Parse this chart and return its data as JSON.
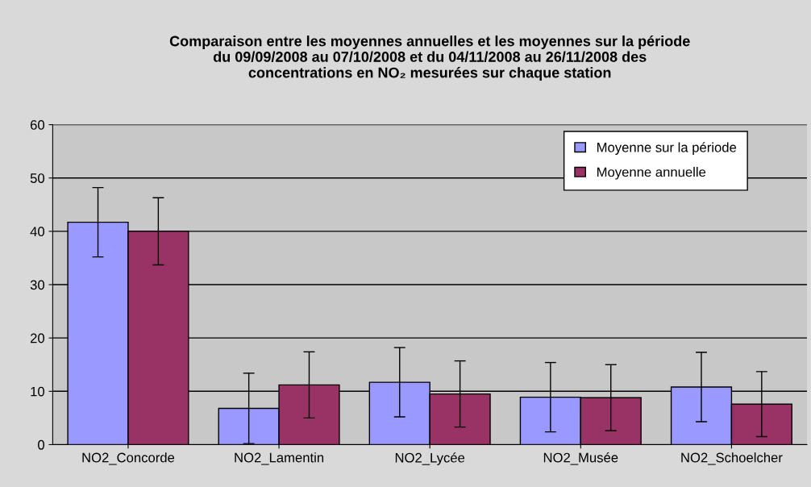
{
  "chart_data": {
    "type": "bar",
    "title": "Comparaison entre les moyennes annuelles et les moyennes sur la période\ndu 09/09/2008 au 07/10/2008 et du 04/11/2008 au 26/11/2008 des\nconcentrations en NO₂ mesurées sur chaque station",
    "categories": [
      "NO2_Concorde",
      "NO2_Lamentin",
      "NO2_Lycée",
      "NO2_Musée",
      "NO2_Schoelcher"
    ],
    "series": [
      {
        "name": "Moyenne sur la période",
        "color": "#9999ff",
        "values": [
          41.7,
          6.8,
          11.7,
          8.9,
          10.8
        ],
        "errors": [
          6.5,
          6.6,
          6.5,
          6.5,
          6.5
        ]
      },
      {
        "name": "Moyenne annuelle",
        "color": "#993366",
        "values": [
          40.0,
          11.2,
          9.5,
          8.8,
          7.6
        ],
        "errors": [
          6.3,
          6.2,
          6.2,
          6.2,
          6.1
        ]
      }
    ],
    "ylim": [
      0,
      60
    ],
    "yticks": [
      0,
      10,
      20,
      30,
      40,
      50,
      60
    ],
    "grid": "y",
    "legend": "top right"
  }
}
